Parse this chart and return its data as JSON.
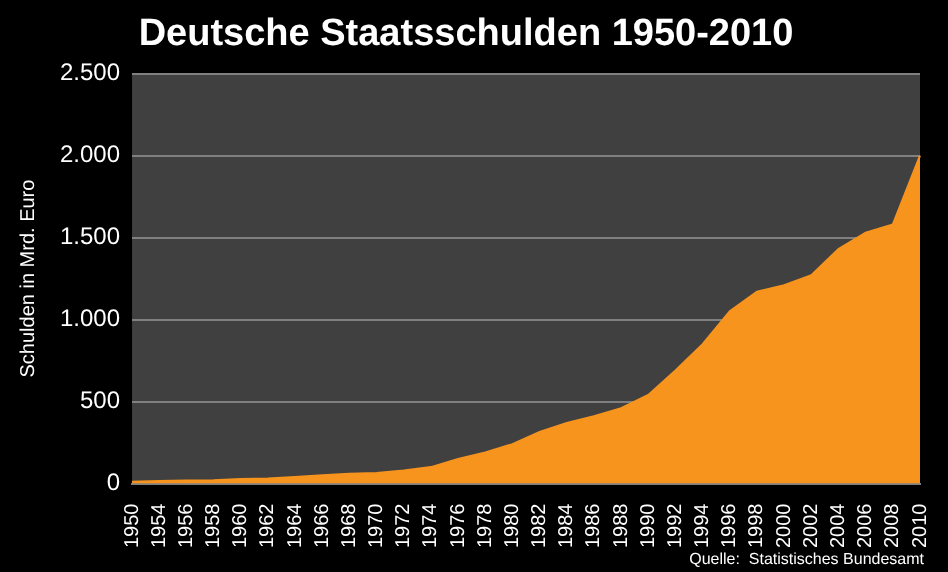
{
  "chart_data": {
    "type": "area",
    "title": "Deutsche Staatsschulden 1950-2010",
    "ylabel": "Schulden in Mrd. Euro",
    "categories": [
      "1950",
      "1954",
      "1956",
      "1958",
      "1960",
      "1962",
      "1964",
      "1966",
      "1968",
      "1970",
      "1972",
      "1974",
      "1976",
      "1978",
      "1980",
      "1982",
      "1984",
      "1986",
      "1988",
      "1990",
      "1992",
      "1994",
      "1996",
      "1998",
      "2000",
      "2002",
      "2004",
      "2006",
      "2008",
      "2010"
    ],
    "values": [
      10,
      15,
      18,
      20,
      27,
      30,
      40,
      50,
      60,
      64,
      80,
      100,
      150,
      190,
      240,
      315,
      370,
      410,
      460,
      540,
      690,
      850,
      1050,
      1170,
      1210,
      1270,
      1430,
      1530,
      1580,
      2000
    ],
    "color": "#f7941d",
    "ylim": [
      0,
      2500
    ],
    "yticks": [
      {
        "value": 0,
        "label": "0"
      },
      {
        "value": 500,
        "label": "500"
      },
      {
        "value": 1000,
        "label": "1.000"
      },
      {
        "value": 1500,
        "label": "1.500"
      },
      {
        "value": 2000,
        "label": "2.000"
      },
      {
        "value": 2500,
        "label": "2.500"
      }
    ],
    "grid": "y",
    "annotations": [
      "Quelle:  Statistisches Bundesamt"
    ]
  }
}
